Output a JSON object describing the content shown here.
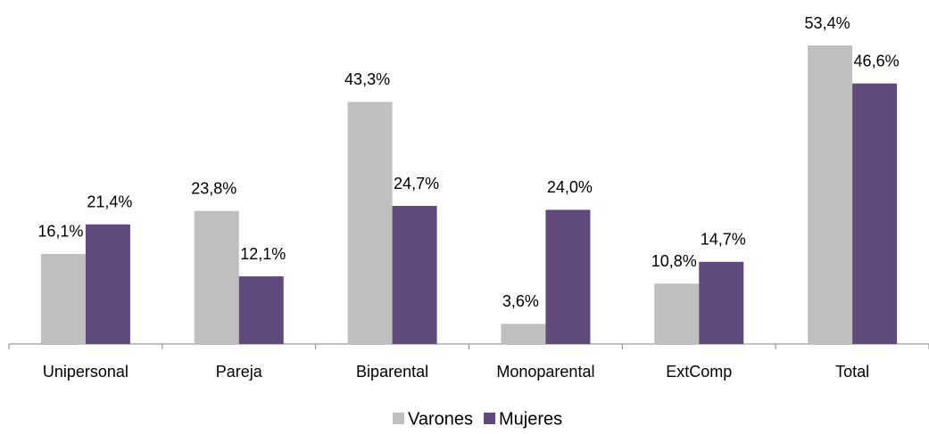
{
  "chart_data": {
    "type": "bar",
    "categories": [
      "Unipersonal",
      "Pareja",
      "Biparental",
      "Monoparental",
      "ExtComp",
      "Total"
    ],
    "series": [
      {
        "name": "Varones",
        "color": "#bfbfbf",
        "values": [
          16.1,
          23.8,
          43.3,
          3.6,
          10.8,
          53.4
        ],
        "value_labels": [
          "16,1%",
          "23,8%",
          "43,3%",
          "3,6%",
          "10,8%",
          "53,4%"
        ]
      },
      {
        "name": "Mujeres",
        "color": "#604a7b",
        "values": [
          21.4,
          12.1,
          24.7,
          24.0,
          14.7,
          46.6
        ],
        "value_labels": [
          "21,4%",
          "12,1%",
          "24,7%",
          "24,0%",
          "14,7%",
          "46,6%"
        ]
      }
    ],
    "legend": "bottom"
  }
}
